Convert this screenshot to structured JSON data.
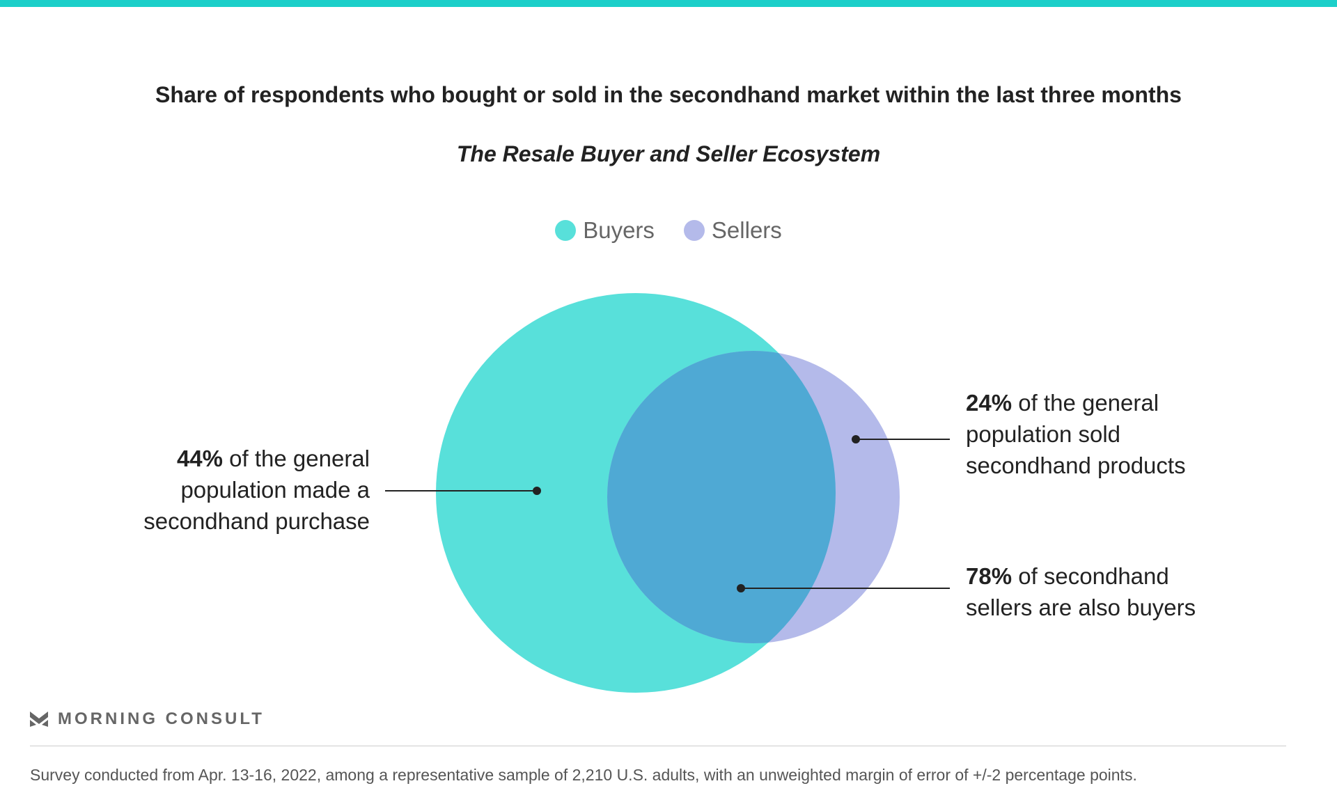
{
  "chart_data": {
    "type": "venn",
    "title": "Share of respondents who bought or sold in the secondhand market within the last three months",
    "subtitle": "The Resale Buyer and Seller Ecosystem",
    "legend": [
      {
        "name": "Buyers",
        "color": "#58E0DA"
      },
      {
        "name": "Sellers",
        "color": "#B4BAEA"
      }
    ],
    "overlap_color": "#4FA9D4",
    "sets": [
      {
        "name": "Buyers",
        "value": 44
      },
      {
        "name": "Sellers",
        "value": 24
      }
    ],
    "overlap_share_of_sellers": 78,
    "annotations": {
      "buyers": {
        "bold": "44%",
        "line1": " of the general",
        "line2": "population made a",
        "line3": "secondhand purchase"
      },
      "sellers": {
        "bold": "24%",
        "line1": " of the general",
        "line2": "population sold",
        "line3": "secondhand products"
      },
      "overlap": {
        "bold": "78%",
        "line1": " of secondhand",
        "line2": "sellers are also buyers"
      }
    }
  },
  "brand": "MORNING CONSULT",
  "footer": "Survey conducted from Apr. 13-16, 2022, among a representative sample of 2,210 U.S. adults, with an unweighted margin of error of +/-2 percentage points."
}
